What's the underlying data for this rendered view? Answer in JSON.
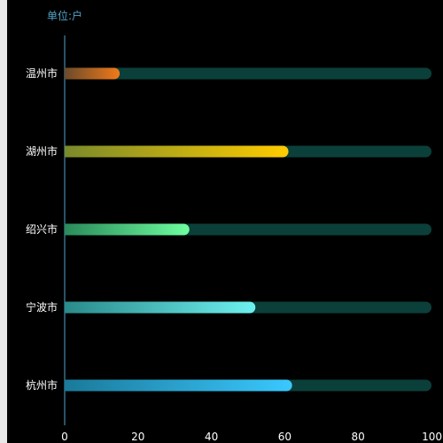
{
  "chart_data": {
    "type": "bar",
    "orientation": "horizontal",
    "unit_label": "单位:户",
    "categories": [
      "温州市",
      "湖州市",
      "绍兴市",
      "宁波市",
      "杭州市"
    ],
    "values": [
      15,
      61,
      34,
      52,
      62
    ],
    "xlim": [
      0,
      100
    ],
    "xticks": [
      "0",
      "20",
      "40",
      "60",
      "80",
      "100"
    ],
    "max": 100,
    "track_color": "#0b3f3a",
    "bar_colors": [
      [
        "#6b4a2a",
        "#f07a1a"
      ],
      [
        "#7a8a2a",
        "#ffcc00"
      ],
      [
        "#2a8a5a",
        "#6effa0"
      ],
      [
        "#2a8a8a",
        "#6ef0f0"
      ],
      [
        "#1a7a9a",
        "#3ac8ff"
      ]
    ]
  }
}
